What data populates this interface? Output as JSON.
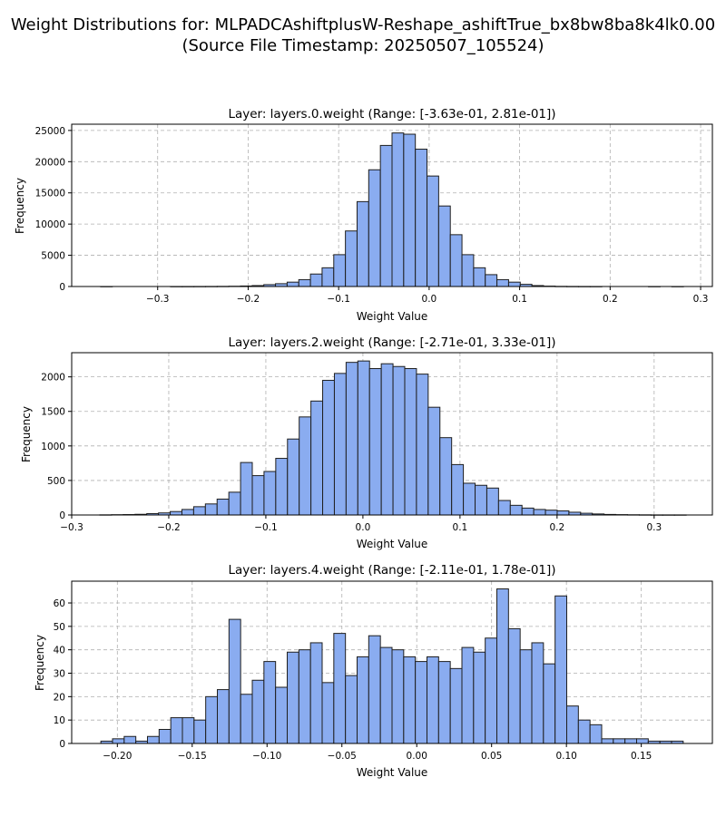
{
  "suptitle": {
    "line1": "Weight Distributions for: MLPADCAshiftplusW-Reshape_ashiftTrue_bx8bw8ba8k4lk0.00",
    "line2": "(Source File Timestamp: 20250507_105524)"
  },
  "colors": {
    "bar_fill": "#8aacf0",
    "bar_edge": "#1f1f1f",
    "grid": "#b0b0b0"
  },
  "chart_data": [
    {
      "type": "bar",
      "title": "Layer: layers.0.weight (Range: [-3.63e-01, 2.81e-01])",
      "xlabel": "Weight Value",
      "ylabel": "Frequency",
      "xlim": [
        -0.395,
        0.313
      ],
      "ylim": [
        0,
        26000
      ],
      "xticks": [
        -0.3,
        -0.2,
        -0.1,
        0.0,
        0.1,
        0.2,
        0.3
      ],
      "xtick_labels": [
        "−0.3",
        "−0.2",
        "−0.1",
        "0.0",
        "0.1",
        "0.2",
        "0.3"
      ],
      "yticks": [
        0,
        5000,
        10000,
        15000,
        20000,
        25000
      ],
      "ytick_labels": [
        "0",
        "5000",
        "10000",
        "15000",
        "20000",
        "25000"
      ],
      "grid": true,
      "bin_start": -0.363,
      "bin_width": 0.01288,
      "values": [
        1,
        0,
        0,
        0,
        0,
        0,
        1,
        2,
        5,
        10,
        20,
        40,
        80,
        150,
        300,
        450,
        700,
        1100,
        2000,
        3000,
        5100,
        8900,
        13600,
        18700,
        22600,
        24600,
        24400,
        22000,
        17700,
        12900,
        8300,
        5100,
        3000,
        1900,
        1100,
        700,
        350,
        150,
        60,
        20,
        8,
        3,
        1,
        0,
        0,
        0,
        0,
        1,
        0,
        1
      ]
    },
    {
      "type": "bar",
      "title": "Layer: layers.2.weight (Range: [-2.71e-01, 3.33e-01])",
      "xlabel": "Weight Value",
      "ylabel": "Frequency",
      "xlim": [
        -0.3,
        0.36
      ],
      "ylim": [
        0,
        2350
      ],
      "xticks": [
        -0.3,
        -0.2,
        -0.1,
        0.0,
        0.1,
        0.2,
        0.3
      ],
      "xtick_labels": [
        "−0.3",
        "−0.2",
        "−0.1",
        "0.0",
        "0.1",
        "0.2",
        "0.3"
      ],
      "yticks": [
        0,
        500,
        1000,
        1500,
        2000
      ],
      "ytick_labels": [
        "0",
        "500",
        "1000",
        "1500",
        "2000"
      ],
      "grid": true,
      "bin_start": -0.271,
      "bin_width": 0.01208,
      "values": [
        2,
        4,
        6,
        10,
        20,
        30,
        50,
        80,
        120,
        160,
        230,
        330,
        760,
        570,
        630,
        820,
        1100,
        1420,
        1650,
        1950,
        2050,
        2210,
        2230,
        2120,
        2190,
        2150,
        2120,
        2040,
        1560,
        1120,
        730,
        460,
        430,
        390,
        210,
        140,
        100,
        80,
        70,
        60,
        40,
        25,
        15,
        8,
        5,
        3,
        2,
        1,
        1,
        1
      ]
    },
    {
      "type": "bar",
      "title": "Layer: layers.4.weight (Range: [-2.11e-01, 1.78e-01])",
      "xlabel": "Weight Value",
      "ylabel": "Frequency",
      "xlim": [
        -0.2305,
        0.1975
      ],
      "ylim": [
        0,
        69.3
      ],
      "xticks": [
        -0.2,
        -0.15,
        -0.1,
        -0.05,
        0.0,
        0.05,
        0.1,
        0.15
      ],
      "xtick_labels": [
        "−0.20",
        "−0.15",
        "−0.10",
        "−0.05",
        "0.00",
        "0.05",
        "0.10",
        "0.15"
      ],
      "yticks": [
        0,
        10,
        20,
        30,
        40,
        50,
        60
      ],
      "ytick_labels": [
        "0",
        "10",
        "20",
        "30",
        "40",
        "50",
        "60"
      ],
      "grid": true,
      "bin_start": -0.211,
      "bin_width": 0.00778,
      "values": [
        1,
        2,
        3,
        1,
        3,
        6,
        11,
        11,
        10,
        20,
        23,
        53,
        21,
        27,
        35,
        24,
        39,
        40,
        43,
        26,
        47,
        29,
        37,
        46,
        41,
        40,
        37,
        35,
        37,
        35,
        32,
        41,
        39,
        45,
        66,
        49,
        40,
        43,
        34,
        63,
        16,
        10,
        8,
        2,
        2,
        2,
        2,
        1,
        1,
        1
      ]
    }
  ]
}
